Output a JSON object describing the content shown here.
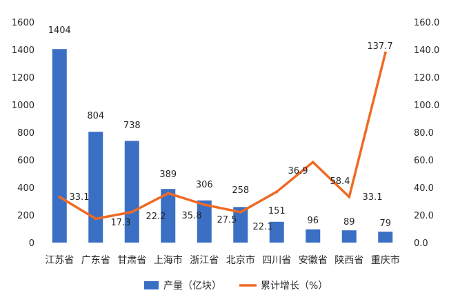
{
  "chart_data": {
    "type": "bar",
    "title": "",
    "categories": [
      "江苏省",
      "广东省",
      "甘肃省",
      "上海市",
      "浙江省",
      "北京市",
      "四川省",
      "安徽省",
      "陕西省",
      "重庆市"
    ],
    "series": [
      {
        "name": "产量（亿块）",
        "type": "bar",
        "axis": "left",
        "values": [
          1404,
          804,
          738,
          389,
          306,
          258,
          151,
          96,
          89,
          79
        ],
        "color": "#3a6fc4"
      },
      {
        "name": "累计增长（%）",
        "type": "line",
        "axis": "right",
        "values": [
          33.1,
          17.3,
          22.2,
          35.8,
          27.5,
          22.1,
          36.9,
          58.4,
          33.1,
          137.7
        ],
        "color": "#ef6a24"
      }
    ],
    "left_axis": {
      "min": 0,
      "max": 1600,
      "ticks": [
        "0",
        "200",
        "400",
        "600",
        "800",
        "1000",
        "1200",
        "1400",
        "1600"
      ]
    },
    "right_axis": {
      "min": 0,
      "max": 160,
      "ticks": [
        "0.0",
        "20.0",
        "40.0",
        "60.0",
        "80.0",
        "100.0",
        "120.0",
        "140.0",
        "160.0"
      ]
    },
    "grid": false,
    "legend": "bottom-center"
  }
}
